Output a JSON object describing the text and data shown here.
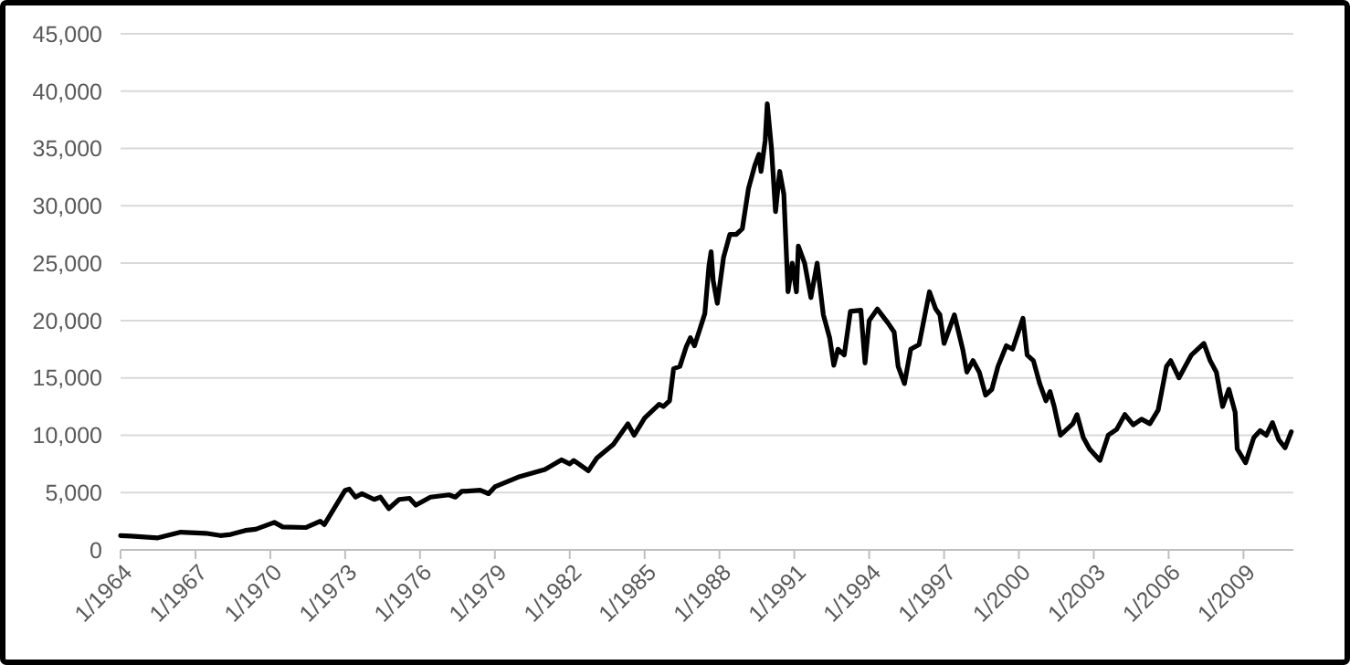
{
  "chart_data": {
    "type": "line",
    "grid": "y",
    "marker": "none",
    "line_style": "solid",
    "xlim": [
      "1964-01",
      "2011-01"
    ],
    "xticks": [
      {
        "value": "1964-01",
        "label": "1/1964"
      },
      {
        "value": "1967-01",
        "label": "1/1967"
      },
      {
        "value": "1970-01",
        "label": "1/1970"
      },
      {
        "value": "1973-01",
        "label": "1/1973"
      },
      {
        "value": "1976-01",
        "label": "1/1976"
      },
      {
        "value": "1979-01",
        "label": "1/1979"
      },
      {
        "value": "1982-01",
        "label": "1/1982"
      },
      {
        "value": "1985-01",
        "label": "1/1985"
      },
      {
        "value": "1988-01",
        "label": "1/1988"
      },
      {
        "value": "1991-01",
        "label": "1/1991"
      },
      {
        "value": "1994-01",
        "label": "1/1994"
      },
      {
        "value": "1997-01",
        "label": "1/1997"
      },
      {
        "value": "2000-01",
        "label": "1/2000"
      },
      {
        "value": "2003-01",
        "label": "1/2003"
      },
      {
        "value": "2006-01",
        "label": "1/2006"
      },
      {
        "value": "2009-01",
        "label": "1/2009"
      }
    ],
    "ylim": [
      0,
      45000
    ],
    "yticks": [
      {
        "value": 0,
        "label": "0"
      },
      {
        "value": 5000,
        "label": "5,000"
      },
      {
        "value": 10000,
        "label": "10,000"
      },
      {
        "value": 15000,
        "label": "15,000"
      },
      {
        "value": 20000,
        "label": "20,000"
      },
      {
        "value": 25000,
        "label": "25,000"
      },
      {
        "value": 30000,
        "label": "30,000"
      },
      {
        "value": 35000,
        "label": "35,000"
      },
      {
        "value": 40000,
        "label": "40,000"
      },
      {
        "value": 45000,
        "label": "45,000"
      }
    ],
    "x": [
      "1964-01",
      "1964-06",
      "1965-07",
      "1966-06",
      "1967-06",
      "1968-01",
      "1968-06",
      "1969-01",
      "1969-06",
      "1970-03",
      "1970-07",
      "1971-06",
      "1972-01",
      "1972-03",
      "1973-01",
      "1973-03",
      "1973-06",
      "1973-09",
      "1974-03",
      "1974-06",
      "1974-10",
      "1975-03",
      "1975-08",
      "1975-11",
      "1976-06",
      "1977-03",
      "1977-06",
      "1977-09",
      "1978-06",
      "1978-10",
      "1979-01",
      "1980-01",
      "1981-01",
      "1981-09",
      "1982-01",
      "1982-03",
      "1982-10",
      "1983-02",
      "1983-10",
      "1984-05",
      "1984-08",
      "1985-01",
      "1985-08",
      "1985-10",
      "1986-01",
      "1986-03",
      "1986-06",
      "1986-09",
      "1986-11",
      "1987-01",
      "1987-06",
      "1987-08",
      "1987-09",
      "1987-10",
      "1987-12",
      "1988-03",
      "1988-06",
      "1988-09",
      "1988-12",
      "1989-03",
      "1989-06",
      "1989-08",
      "1989-09",
      "1989-11",
      "1989-12",
      "1990-02",
      "1990-04",
      "1990-06",
      "1990-08",
      "1990-10",
      "1990-12",
      "1991-02",
      "1991-03",
      "1991-06",
      "1991-09",
      "1991-12",
      "1992-03",
      "1992-06",
      "1992-08",
      "1992-10",
      "1993-01",
      "1993-04",
      "1993-09",
      "1993-11",
      "1994-01",
      "1994-05",
      "1994-10",
      "1995-01",
      "1995-03",
      "1995-06",
      "1995-09",
      "1996-01",
      "1996-06",
      "1996-09",
      "1996-11",
      "1997-01",
      "1997-06",
      "1997-10",
      "1997-12",
      "1998-03",
      "1998-06",
      "1998-09",
      "1998-12",
      "1999-03",
      "1999-07",
      "1999-10",
      "2000-03",
      "2000-05",
      "2000-08",
      "2000-11",
      "2001-02",
      "2001-04",
      "2001-06",
      "2001-09",
      "2001-12",
      "2002-03",
      "2002-05",
      "2002-08",
      "2002-11",
      "2003-04",
      "2003-08",
      "2003-12",
      "2004-04",
      "2004-08",
      "2004-12",
      "2005-04",
      "2005-08",
      "2005-12",
      "2006-02",
      "2006-06",
      "2006-09",
      "2006-12",
      "2007-06",
      "2007-09",
      "2007-12",
      "2008-03",
      "2008-06",
      "2008-09",
      "2008-10",
      "2009-02",
      "2009-06",
      "2009-09",
      "2009-12",
      "2010-03",
      "2010-06",
      "2010-09",
      "2010-12"
    ],
    "series": [
      {
        "color": "#000000",
        "values": [
          1250,
          1200,
          1050,
          1550,
          1450,
          1250,
          1350,
          1700,
          1800,
          2400,
          2000,
          1950,
          2500,
          2200,
          5200,
          5300,
          4600,
          4900,
          4400,
          4600,
          3600,
          4400,
          4500,
          3900,
          4600,
          4800,
          4600,
          5100,
          5200,
          4900,
          5500,
          6400,
          7000,
          7850,
          7500,
          7800,
          6900,
          8000,
          9200,
          11000,
          10000,
          11500,
          12700,
          12500,
          13000,
          15800,
          16000,
          17700,
          18500,
          17800,
          20600,
          24800,
          26000,
          23500,
          21500,
          25500,
          27500,
          27500,
          28000,
          31500,
          33500,
          34500,
          33000,
          35700,
          38900,
          35000,
          29500,
          33000,
          31000,
          22500,
          25000,
          22500,
          26500,
          25000,
          22000,
          25000,
          20500,
          18500,
          16100,
          17500,
          17000,
          20800,
          20900,
          16300,
          20000,
          21000,
          19800,
          19000,
          16000,
          14500,
          17500,
          17900,
          22500,
          21000,
          20500,
          18000,
          20500,
          17500,
          15500,
          16500,
          15500,
          13500,
          14000,
          16000,
          17800,
          17500,
          20200,
          17000,
          16500,
          14500,
          13000,
          13800,
          12500,
          10000,
          10500,
          11000,
          11800,
          9800,
          8800,
          7800,
          10000,
          10500,
          11800,
          10900,
          11400,
          11000,
          12200,
          16000,
          16500,
          15000,
          16000,
          17000,
          18000,
          16500,
          15500,
          12500,
          14000,
          12000,
          8800,
          7600,
          9800,
          10400,
          10000,
          11100,
          9600,
          8900,
          10300
        ]
      }
    ]
  }
}
